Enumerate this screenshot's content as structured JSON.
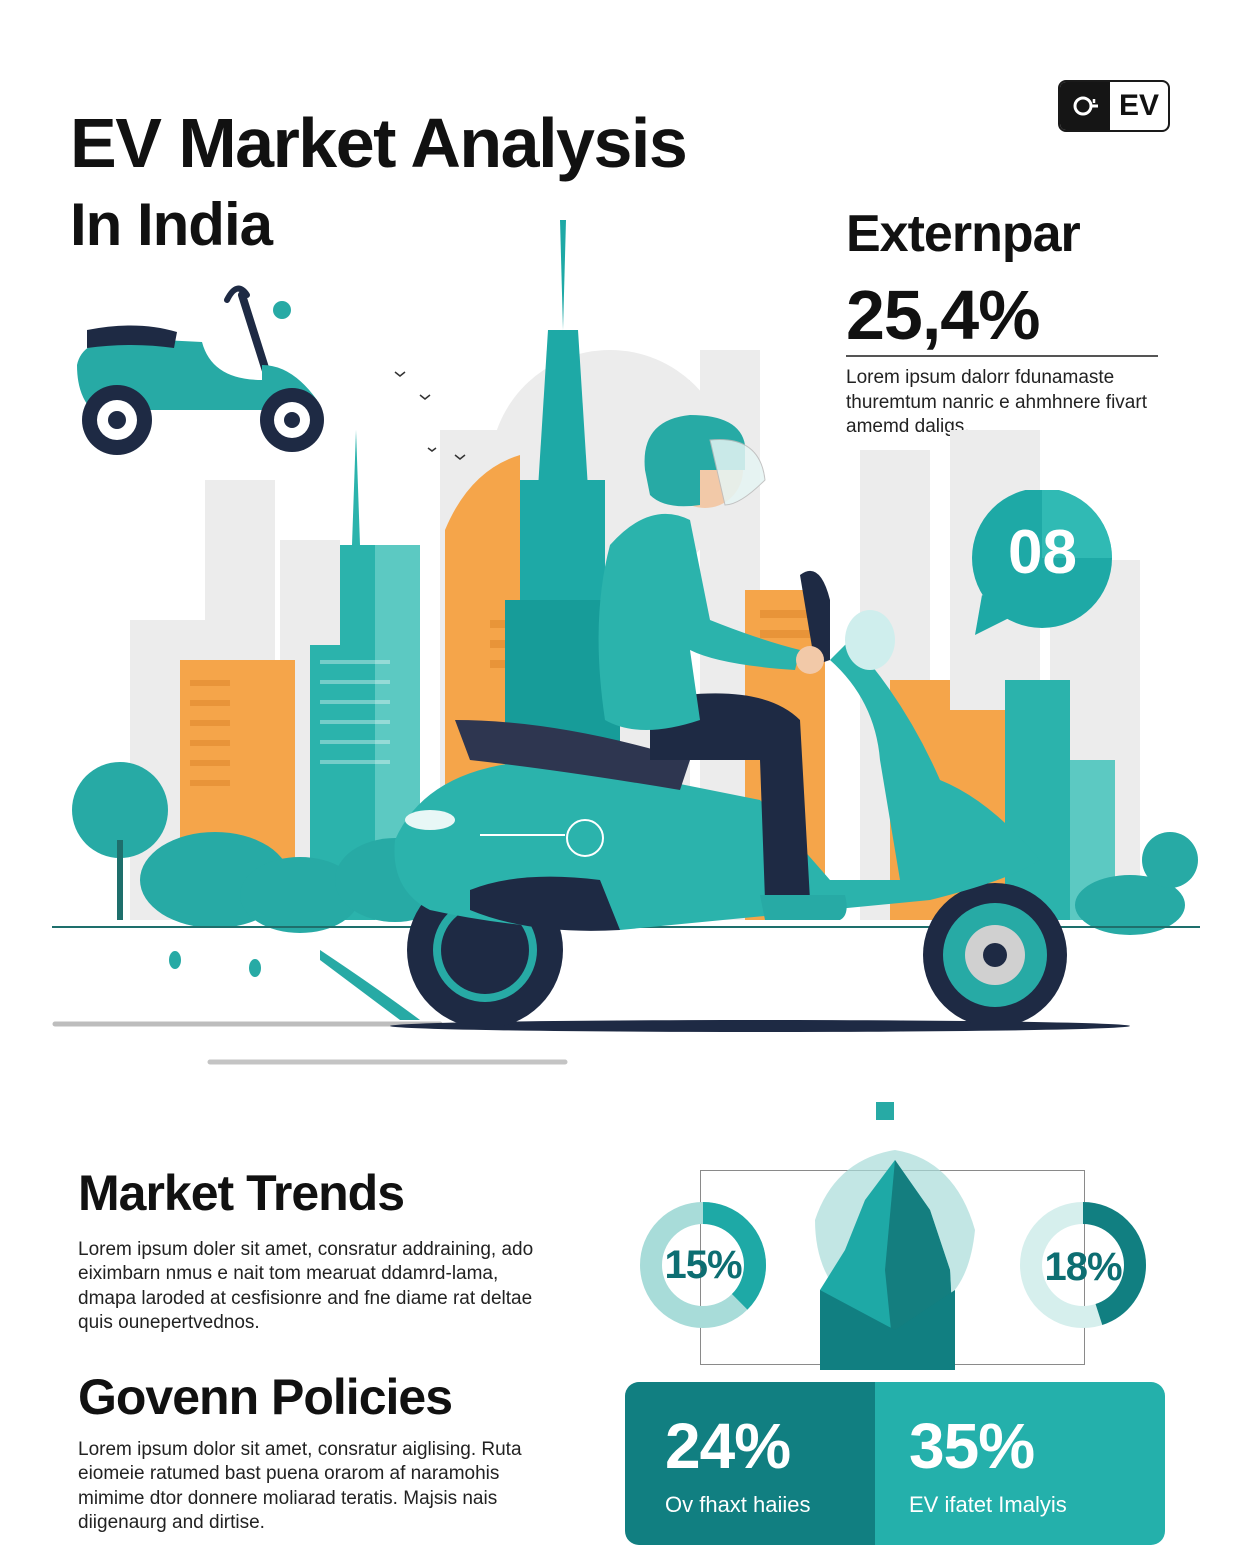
{
  "header": {
    "title": "EV Market Analysis",
    "subtitle": "In India",
    "badge_text": "EV"
  },
  "highlight": {
    "label": "Externpar",
    "value": "25,4%",
    "description": "Lorem ipsum dalorr fdunamaste thuremtum nanric e ahmhnere fivart amemd daligs."
  },
  "bubble": {
    "value": "08"
  },
  "sections": {
    "trends": {
      "title": "Market Trends",
      "body": "Lorem ipsum doler sit amet, consratur addraining, ado eiximbarn nmus e nait tom mearuat ddamrd-lama, dmapa laroded at cesfisionre and fne diame rat deltae quis ounepertvednos."
    },
    "policies": {
      "title": "Govenn Policies",
      "body": "Lorem ipsum dolor sit amet, consratur aiglising. Ruta eiomeie ratumed bast puena orarom af naramohis mimime dtor donnere moliarad teratis. Majsis nais diigenaurg and dirtise."
    }
  },
  "donuts": [
    {
      "label": "15%",
      "fraction": 0.15
    },
    {
      "label": "18%",
      "fraction": 0.18
    }
  ],
  "stat_panel": [
    {
      "value": "24%",
      "caption": "Ov fhaxt haiies"
    },
    {
      "value": "35%",
      "caption": "EV ifatet Imalyis"
    }
  ],
  "colors": {
    "teal_dark": "#117f81",
    "teal": "#24b0ab",
    "teal_light": "#a8dcd9",
    "orange": "#f5a54a",
    "navy": "#1e2a44",
    "gray_light": "#ececec"
  }
}
